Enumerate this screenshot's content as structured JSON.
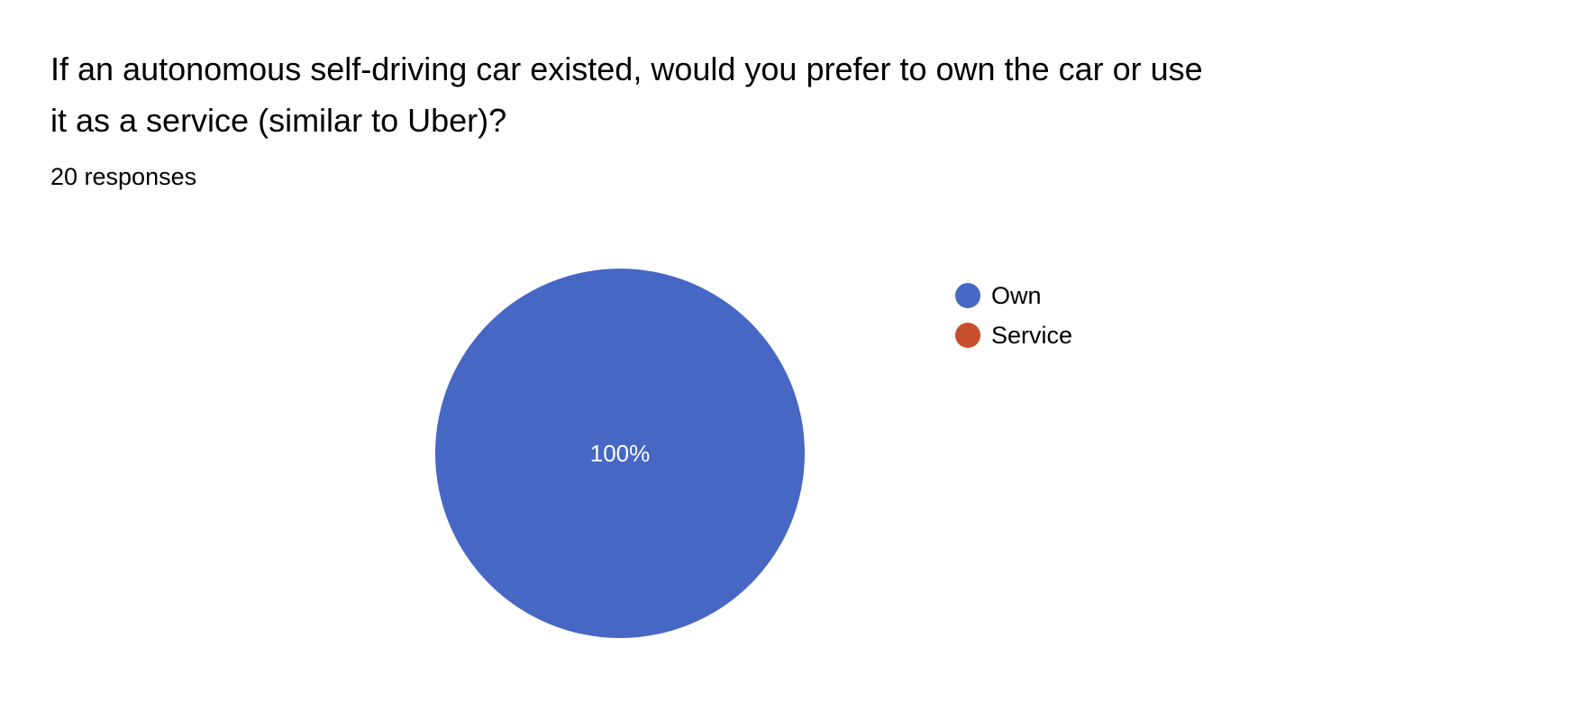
{
  "question": {
    "line1": "If an autonomous self-driving car existed, would you prefer to own the car or use",
    "line2": "it as a service (similar to Uber)?"
  },
  "responses_text": "20 responses",
  "chart_data": {
    "type": "pie",
    "slices": [
      {
        "label": "Own",
        "value": 100,
        "color": "#4767c5",
        "data_label": "100%"
      },
      {
        "label": "Service",
        "value": 0,
        "color": "#c84f2b",
        "data_label": ""
      }
    ],
    "legend_placement": "right"
  }
}
